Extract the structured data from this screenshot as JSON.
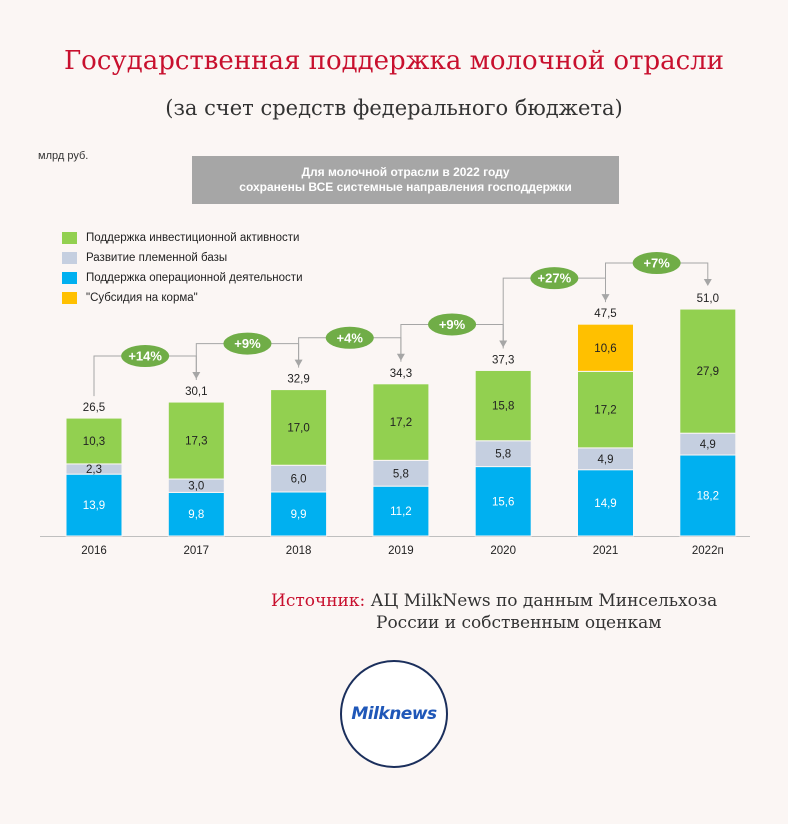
{
  "header": {
    "title": "Государственная поддержка молочной отрасли",
    "subtitle": "(за счет средств федерального бюджета)"
  },
  "unit_label": "млрд руб.",
  "banner": {
    "line1": "Для молочной отрасли в 2022 году",
    "line2": "сохранены ВСЕ системные направления господдержки"
  },
  "colors": {
    "investment": "#92d050",
    "breeding": "#c5cfe0",
    "operational": "#00b0f0",
    "feed": "#ffc000",
    "growth_badge": "#70ad47"
  },
  "chart_data": {
    "type": "bar",
    "stacked": true,
    "categories": [
      "2016",
      "2017",
      "2018",
      "2019",
      "2020",
      "2021",
      "2022п"
    ],
    "series": [
      {
        "key": "operational",
        "name": "Поддержка операционной деятельности",
        "values": [
          13.9,
          9.8,
          9.9,
          11.2,
          15.6,
          14.9,
          18.2
        ]
      },
      {
        "key": "breeding",
        "name": "Развитие племенной базы",
        "values": [
          2.3,
          3.0,
          6.0,
          5.8,
          5.8,
          4.9,
          4.9
        ]
      },
      {
        "key": "investment",
        "name": "Поддержка инвестиционной активности",
        "values": [
          10.3,
          17.3,
          17.0,
          17.2,
          15.8,
          17.2,
          27.9
        ]
      },
      {
        "key": "feed",
        "name": "\"Субсидия на корма\"",
        "values": [
          null,
          null,
          null,
          null,
          null,
          10.6,
          null
        ]
      }
    ],
    "value_labels": {
      "operational": [
        "13,9",
        "9,8",
        "9,9",
        "11,2",
        "15,6",
        "14,9",
        "18,2"
      ],
      "breeding": [
        "2,3",
        "3,0",
        "6,0",
        "5,8",
        "5,8",
        "4,9",
        "4,9"
      ],
      "investment": [
        "10,3",
        "17,3",
        "17,0",
        "17,2",
        "15,8",
        "17,2",
        "27,9"
      ],
      "feed": [
        null,
        null,
        null,
        null,
        null,
        "10,6",
        null
      ]
    },
    "totals": [
      26.5,
      30.1,
      32.9,
      34.3,
      37.3,
      47.5,
      51.0
    ],
    "total_labels": [
      "26,5",
      "30,1",
      "32,9",
      "34,3",
      "37,3",
      "47,5",
      "51,0"
    ],
    "growth": [
      "+14%",
      "+9%",
      "+4%",
      "+9%",
      "+27%",
      "+7%"
    ],
    "legend_order": [
      "investment",
      "breeding",
      "operational",
      "feed"
    ]
  },
  "source": {
    "label": "Источник:",
    "line1": "АЦ MilkNews по данным Минсельхоза",
    "line2": "России и собственным оценкам"
  },
  "logo": {
    "text": "Milknews"
  }
}
